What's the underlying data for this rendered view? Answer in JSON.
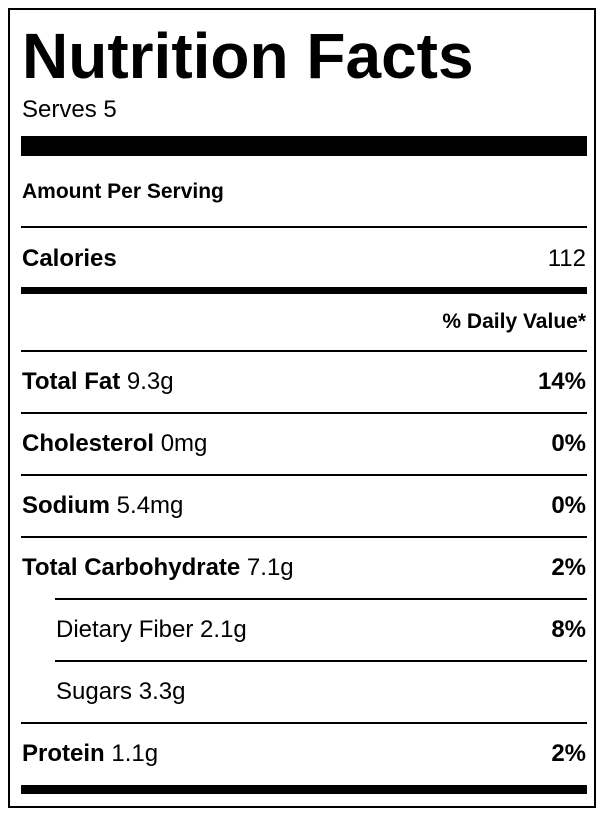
{
  "title": "Nutrition Facts",
  "serves": "Serves 5",
  "amount_per_serving": "Amount Per Serving",
  "calories": {
    "label": "Calories",
    "value": "112"
  },
  "daily_value_header": "% Daily Value*",
  "nutrients": [
    {
      "name": "Total Fat",
      "amount": "9.3g",
      "dv": "14%"
    },
    {
      "name": "Cholesterol",
      "amount": "0mg",
      "dv": "0%"
    },
    {
      "name": "Sodium",
      "amount": "5.4mg",
      "dv": "0%"
    },
    {
      "name": "Total Carbohydrate",
      "amount": "7.1g",
      "dv": "2%"
    },
    {
      "name": "Dietary Fiber",
      "amount": "2.1g",
      "dv": "8%"
    },
    {
      "name": "Sugars",
      "amount": "3.3g",
      "dv": ""
    },
    {
      "name": "Protein",
      "amount": "1.1g",
      "dv": "2%"
    }
  ]
}
